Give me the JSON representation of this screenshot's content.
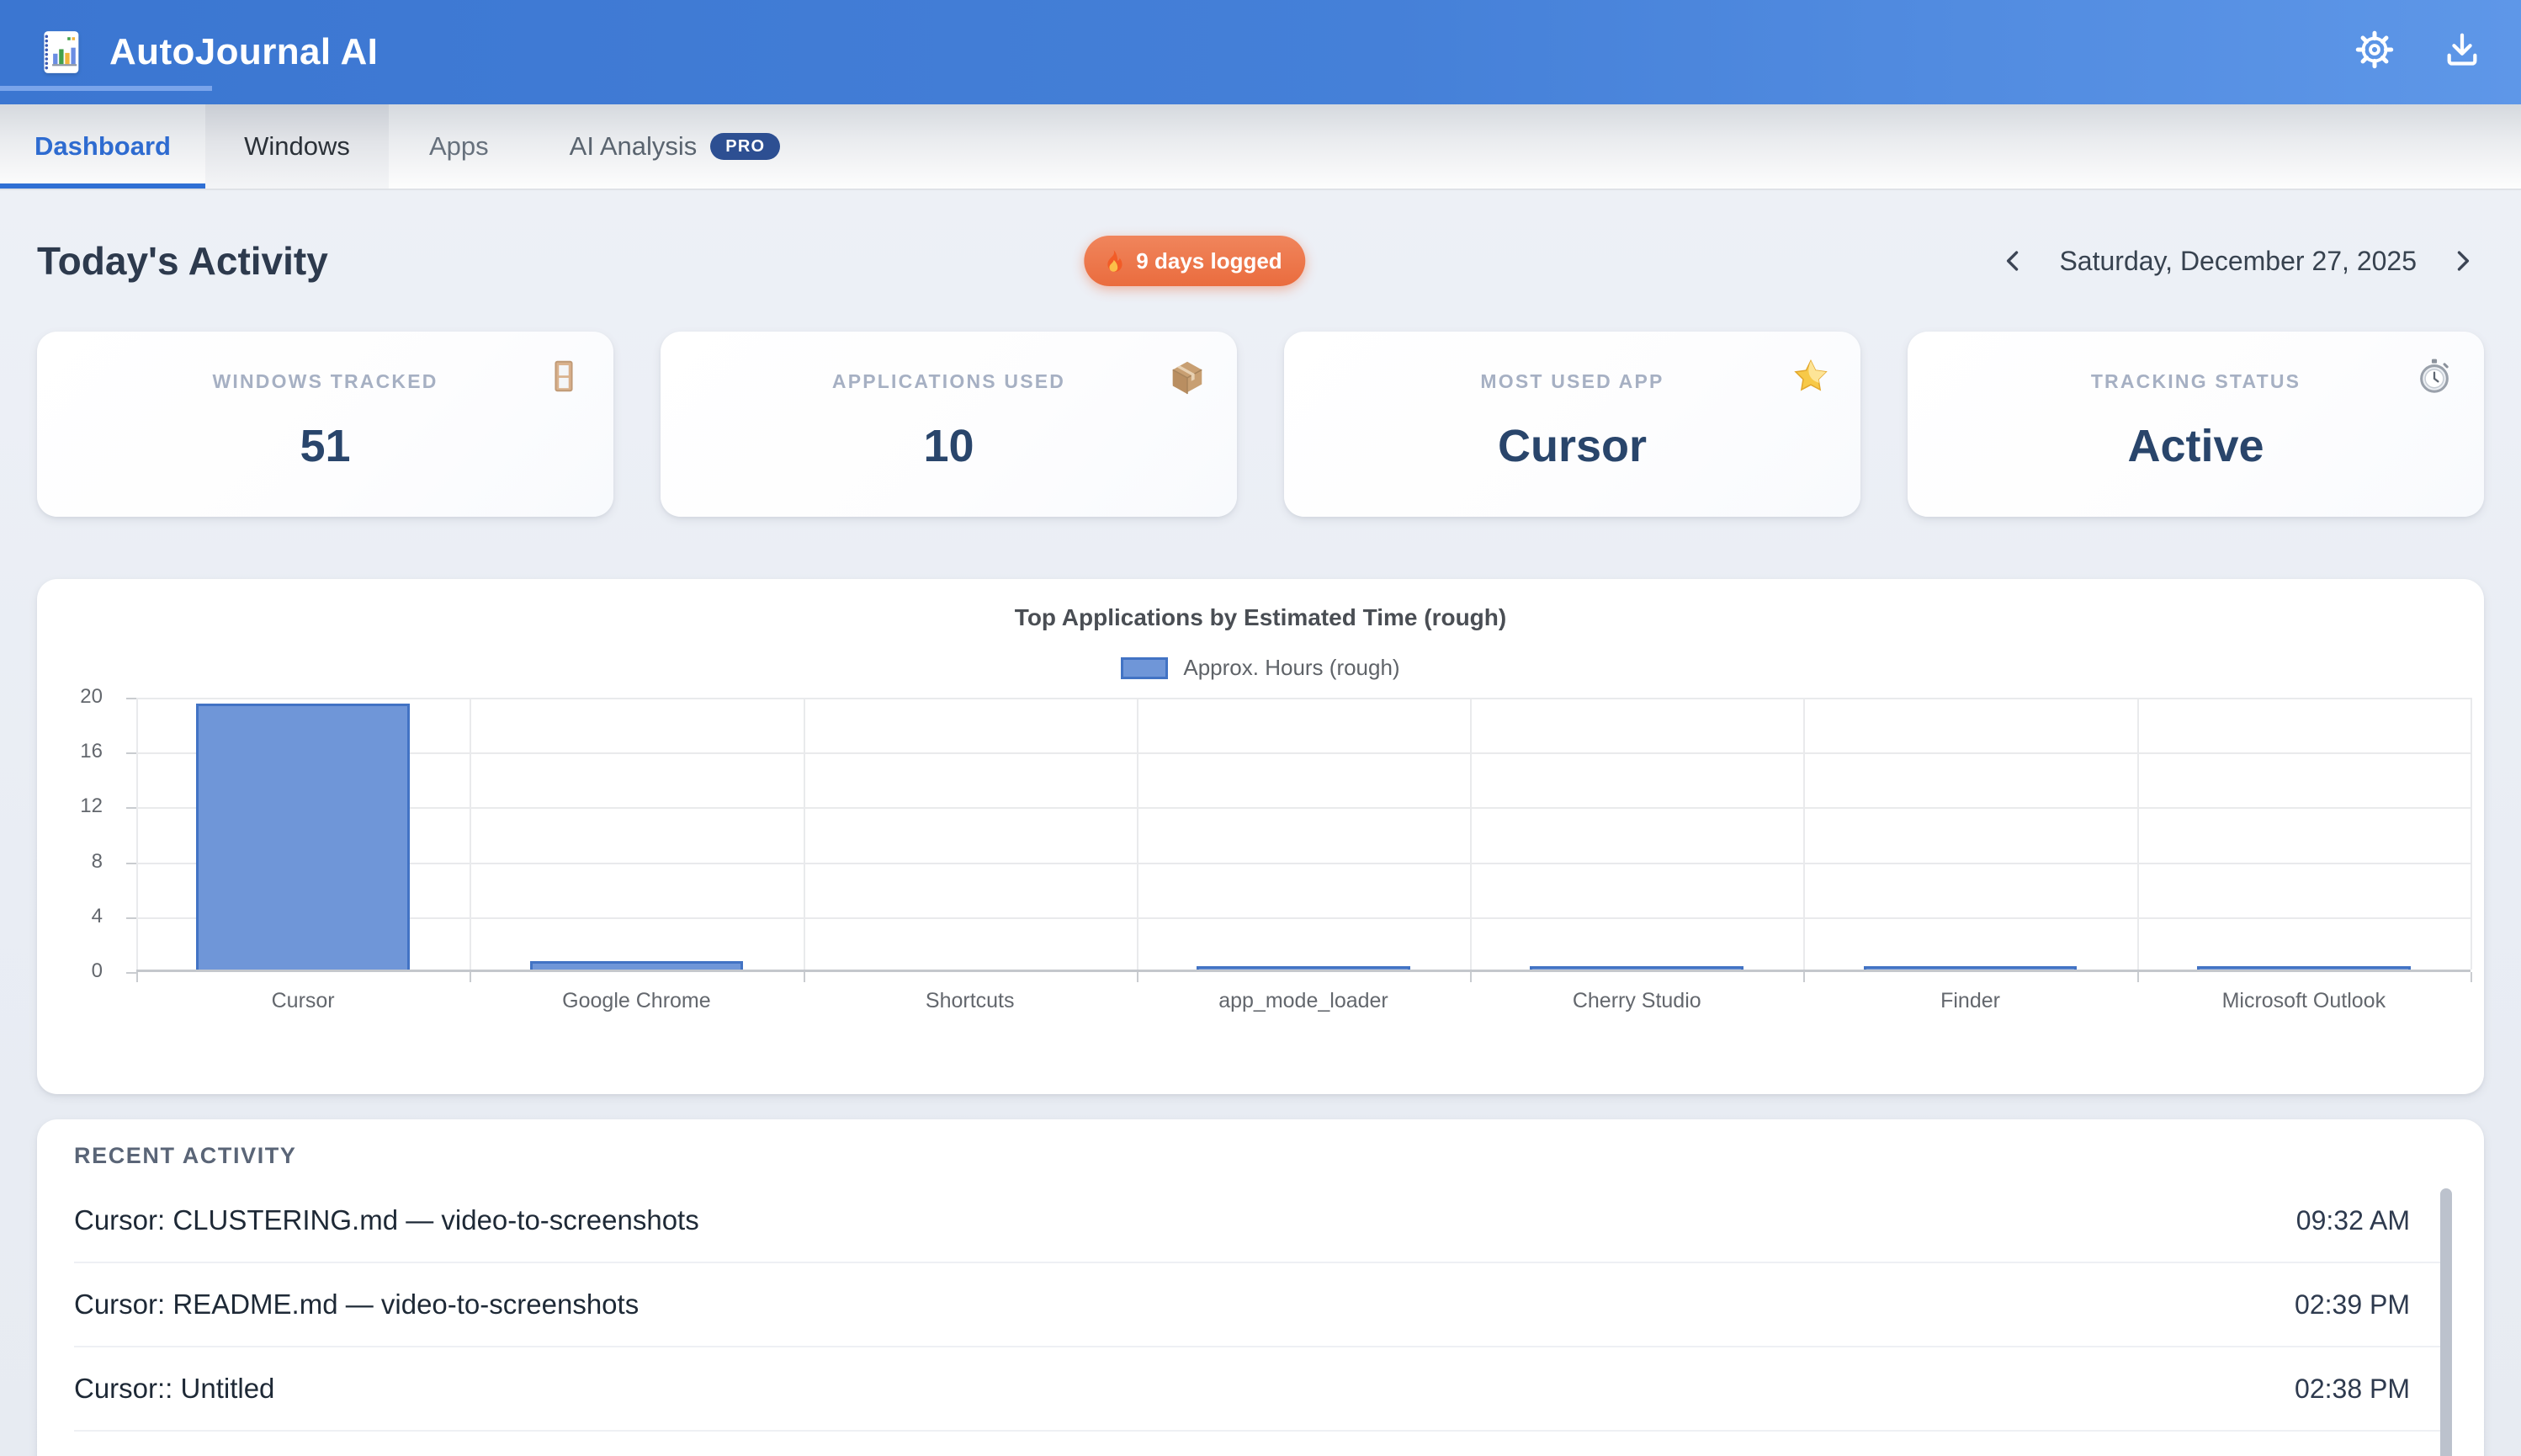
{
  "app": {
    "title": "AutoJournal AI"
  },
  "tabs": [
    {
      "label": "Dashboard",
      "active": true
    },
    {
      "label": "Windows",
      "active": false
    },
    {
      "label": "Apps",
      "active": false
    },
    {
      "label": "AI Analysis",
      "active": false,
      "badge": "PRO"
    }
  ],
  "toolbar": {
    "title": "Today's Activity",
    "streak_badge": "9 days logged",
    "date": "Saturday, December 27, 2025"
  },
  "stats": [
    {
      "label": "WINDOWS TRACKED",
      "value": "51",
      "icon": "window-icon"
    },
    {
      "label": "APPLICATIONS USED",
      "value": "10",
      "icon": "package-icon"
    },
    {
      "label": "MOST USED APP",
      "value": "Cursor",
      "icon": "star-icon"
    },
    {
      "label": "TRACKING STATUS",
      "value": "Active",
      "icon": "stopwatch-icon"
    }
  ],
  "chart_data": {
    "type": "bar",
    "title": "Top Applications by Estimated Time (rough)",
    "legend": "Approx. Hours (rough)",
    "legend_position": "top",
    "categories": [
      "Cursor",
      "Google Chrome",
      "Shortcuts",
      "app_mode_loader",
      "Cherry Studio",
      "Finder",
      "Microsoft Outlook"
    ],
    "values": [
      19.4,
      0.6,
      0,
      0.1,
      0.1,
      0.1,
      0.12
    ],
    "xlabel": "",
    "ylabel": "",
    "ylim": [
      0,
      20
    ],
    "yticks": [
      0,
      4,
      8,
      12,
      16,
      20
    ],
    "grid": true,
    "bar_fill": "#6f96d8",
    "bar_border": "#4273c4"
  },
  "recent": {
    "heading": "RECENT ACTIVITY",
    "items": [
      {
        "title": "Cursor: CLUSTERING.md — video-to-screenshots",
        "time": "09:32 AM"
      },
      {
        "title": "Cursor: README.md — video-to-screenshots",
        "time": "02:39 PM"
      },
      {
        "title": "Cursor:: Untitled",
        "time": "02:38 PM"
      }
    ]
  },
  "colors": {
    "header_blue": "#3f7ad2",
    "accent_blue": "#2e6bd0",
    "badge_orange": "#ed764a",
    "pro_badge_blue": "#2d4f92",
    "stat_value_navy": "#29456b",
    "bar_fill": "#6f96d8",
    "bar_border": "#4273c4",
    "page_bg": "#edf0f6"
  }
}
